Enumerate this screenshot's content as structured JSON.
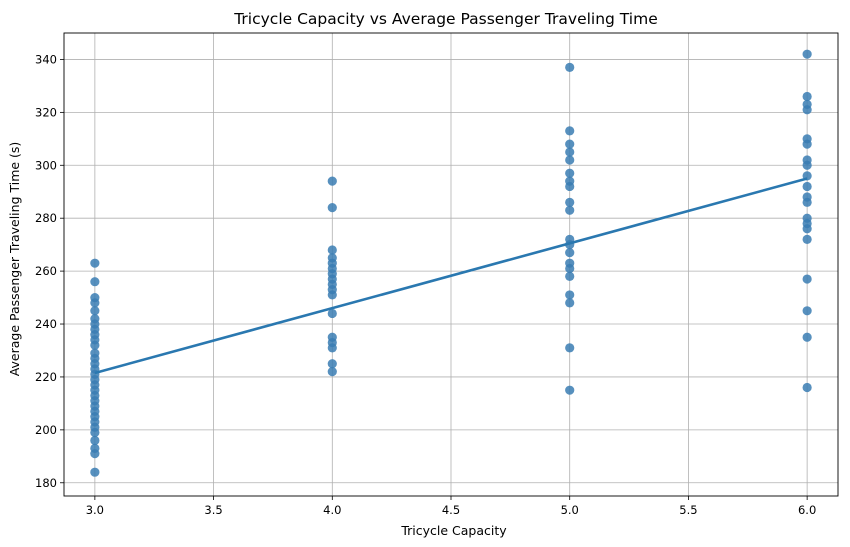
{
  "chart_data": {
    "type": "scatter",
    "title": "Tricycle Capacity vs Average Passenger Traveling Time",
    "xlabel": "Tricycle Capacity",
    "ylabel": "Average Passenger Traveling Time (s)",
    "xlim": [
      2.87,
      6.13
    ],
    "ylim": [
      175,
      350
    ],
    "xticks": [
      "3.0",
      "3.5",
      "4.0",
      "4.5",
      "5.0",
      "5.5",
      "6.0"
    ],
    "yticks": [
      "180",
      "200",
      "220",
      "240",
      "260",
      "280",
      "300",
      "320",
      "340"
    ],
    "grid": true,
    "point_color": "#3a7db3",
    "line_color": "#2a78b0",
    "series": [
      {
        "type": "scatter",
        "points": [
          [
            3,
            184
          ],
          [
            3,
            191
          ],
          [
            3,
            193
          ],
          [
            3,
            196
          ],
          [
            3,
            199
          ],
          [
            3,
            201
          ],
          [
            3,
            203
          ],
          [
            3,
            205
          ],
          [
            3,
            207
          ],
          [
            3,
            209
          ],
          [
            3,
            211
          ],
          [
            3,
            213
          ],
          [
            3,
            215
          ],
          [
            3,
            217
          ],
          [
            3,
            219
          ],
          [
            3,
            221
          ],
          [
            3,
            223
          ],
          [
            3,
            225
          ],
          [
            3,
            227
          ],
          [
            3,
            229
          ],
          [
            3,
            232
          ],
          [
            3,
            234
          ],
          [
            3,
            236
          ],
          [
            3,
            238
          ],
          [
            3,
            240
          ],
          [
            3,
            242
          ],
          [
            3,
            245
          ],
          [
            3,
            248
          ],
          [
            3,
            250
          ],
          [
            3,
            256
          ],
          [
            3,
            263
          ],
          [
            4,
            222
          ],
          [
            4,
            225
          ],
          [
            4,
            231
          ],
          [
            4,
            233
          ],
          [
            4,
            235
          ],
          [
            4,
            244
          ],
          [
            4,
            251
          ],
          [
            4,
            253
          ],
          [
            4,
            255
          ],
          [
            4,
            257
          ],
          [
            4,
            259
          ],
          [
            4,
            261
          ],
          [
            4,
            263
          ],
          [
            4,
            265
          ],
          [
            4,
            268
          ],
          [
            4,
            284
          ],
          [
            4,
            294
          ],
          [
            5,
            215
          ],
          [
            5,
            231
          ],
          [
            5,
            248
          ],
          [
            5,
            251
          ],
          [
            5,
            258
          ],
          [
            5,
            261
          ],
          [
            5,
            263
          ],
          [
            5,
            267
          ],
          [
            5,
            270
          ],
          [
            5,
            272
          ],
          [
            5,
            283
          ],
          [
            5,
            286
          ],
          [
            5,
            292
          ],
          [
            5,
            294
          ],
          [
            5,
            297
          ],
          [
            5,
            302
          ],
          [
            5,
            305
          ],
          [
            5,
            308
          ],
          [
            5,
            313
          ],
          [
            5,
            337
          ],
          [
            6,
            216
          ],
          [
            6,
            235
          ],
          [
            6,
            245
          ],
          [
            6,
            257
          ],
          [
            6,
            272
          ],
          [
            6,
            276
          ],
          [
            6,
            278
          ],
          [
            6,
            280
          ],
          [
            6,
            286
          ],
          [
            6,
            288
          ],
          [
            6,
            292
          ],
          [
            6,
            296
          ],
          [
            6,
            300
          ],
          [
            6,
            302
          ],
          [
            6,
            308
          ],
          [
            6,
            310
          ],
          [
            6,
            321
          ],
          [
            6,
            323
          ],
          [
            6,
            326
          ],
          [
            6,
            342
          ]
        ]
      },
      {
        "type": "line",
        "points": [
          [
            3.0,
            221.5
          ],
          [
            6.0,
            295.0
          ]
        ]
      }
    ]
  }
}
